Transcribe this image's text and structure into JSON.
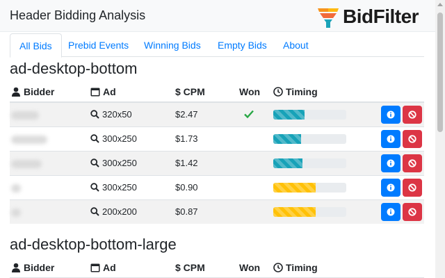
{
  "app": {
    "title": "Header Bidding Analysis",
    "logo_text": "BidFilter"
  },
  "tabs": [
    {
      "label": "All Bids",
      "active": true
    },
    {
      "label": "Prebid Events",
      "active": false
    },
    {
      "label": "Winning Bids",
      "active": false
    },
    {
      "label": "Empty Bids",
      "active": false
    },
    {
      "label": "About",
      "active": false
    }
  ],
  "columns": {
    "bidder": "Bidder",
    "ad": "Ad",
    "cpm": "$ CPM",
    "won": "Won",
    "timing": "Timing"
  },
  "sections": [
    {
      "title": "ad-desktop-bottom",
      "rows": [
        {
          "ad": "320x50",
          "cpm": "$2.47",
          "won": true,
          "timing_fraction": 0.43,
          "bar_color": "#17a2b8"
        },
        {
          "ad": "300x250",
          "cpm": "$1.73",
          "won": false,
          "timing_fraction": 0.38,
          "bar_color": "#17a2b8"
        },
        {
          "ad": "300x250",
          "cpm": "$1.42",
          "won": false,
          "timing_fraction": 0.4,
          "bar_color": "#17a2b8"
        },
        {
          "ad": "300x250",
          "cpm": "$0.90",
          "won": false,
          "timing_fraction": 0.58,
          "bar_color": "#ffc107"
        },
        {
          "ad": "200x200",
          "cpm": "$0.87",
          "won": false,
          "timing_fraction": 0.58,
          "bar_color": "#ffc107"
        }
      ]
    },
    {
      "title": "ad-desktop-bottom-large",
      "rows": []
    }
  ],
  "colors": {
    "link": "#007bff",
    "info_button": "#007bff",
    "block_button": "#dc3545",
    "won_check": "#28a745"
  }
}
